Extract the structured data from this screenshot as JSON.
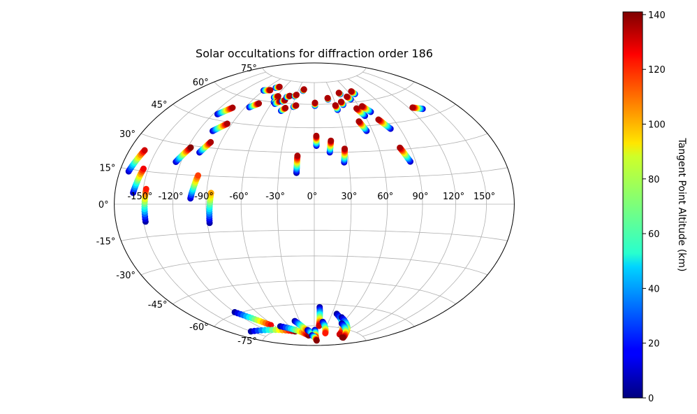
{
  "chart_data": {
    "type": "scatter",
    "projection": "aitoff/hammer-like world (longitude/latitude)",
    "title": "Solar occultations for diffraction order 186",
    "x_ticks": [
      "-150°",
      "-120°",
      "-90°",
      "-60°",
      "-30°",
      "0°",
      "30°",
      "60°",
      "90°",
      "120°",
      "150°"
    ],
    "y_ticks": [
      "75°",
      "60°",
      "45°",
      "30°",
      "15°",
      "0°",
      "-15°",
      "-30°",
      "-45°",
      "-60°",
      "-75°"
    ],
    "lon_values": [
      -150,
      -120,
      -90,
      -60,
      -30,
      0,
      30,
      60,
      90,
      120,
      150
    ],
    "lat_values": [
      75,
      60,
      45,
      30,
      15,
      0,
      -15,
      -30,
      -45,
      -60,
      -75
    ],
    "grid": true,
    "colorbar": {
      "label": "Tangent Point Altitude (km)",
      "colormap": "jet",
      "min": 0,
      "max": 141,
      "ticks": [
        "0",
        "20",
        "40",
        "60",
        "80",
        "100",
        "120",
        "140"
      ],
      "tick_values": [
        0,
        20,
        40,
        60,
        80,
        100,
        120,
        140
      ]
    },
    "tracks": [
      {
        "lon": [
          -170,
          -163
        ],
        "lat": [
          14,
          24
        ],
        "alt": [
          10,
          130
        ]
      },
      {
        "lon": [
          -160,
          -155
        ],
        "lat": [
          5,
          16
        ],
        "alt": [
          10,
          125
        ]
      },
      {
        "lon": [
          -148,
          -147
        ],
        "lat": [
          -8,
          7
        ],
        "alt": [
          5,
          120
        ]
      },
      {
        "lon": [
          -125,
          -117
        ],
        "lat": [
          21,
          29
        ],
        "alt": [
          10,
          140
        ]
      },
      {
        "lon": [
          -104,
          -100
        ],
        "lat": [
          3,
          15
        ],
        "alt": [
          10,
          115
        ]
      },
      {
        "lon": [
          -106,
          -100
        ],
        "lat": [
          27,
          33
        ],
        "alt": [
          10,
          135
        ]
      },
      {
        "lon": [
          -88,
          -86
        ],
        "lat": [
          -10,
          6
        ],
        "alt": [
          5,
          100
        ]
      },
      {
        "lon": [
          -105,
          -95
        ],
        "lat": [
          39,
          44
        ],
        "alt": [
          10,
          135
        ]
      },
      {
        "lon": [
          -115,
          -105
        ],
        "lat": [
          48,
          53
        ],
        "alt": [
          10,
          135
        ]
      },
      {
        "lon": [
          -85,
          -77
        ],
        "lat": [
          55,
          58
        ],
        "alt": [
          10,
          135
        ]
      },
      {
        "lon": [
          -90,
          -80
        ],
        "lat": [
          66,
          67
        ],
        "alt": [
          10,
          135
        ]
      },
      {
        "lon": [
          -75,
          -70
        ],
        "lat": [
          69,
          70
        ],
        "alt": [
          10,
          135
        ]
      },
      {
        "lon": [
          -63,
          -58
        ],
        "lat": [
          63,
          64
        ],
        "alt": [
          10,
          135
        ]
      },
      {
        "lon": [
          -58,
          -53
        ],
        "lat": [
          60,
          61
        ],
        "alt": [
          10,
          135
        ]
      },
      {
        "lon": [
          -55,
          -50
        ],
        "lat": [
          59,
          61
        ],
        "alt": [
          10,
          135
        ]
      },
      {
        "lon": [
          -47,
          -44
        ],
        "lat": [
          61,
          62
        ],
        "alt": [
          10,
          135
        ]
      },
      {
        "lon": [
          -44,
          -40
        ],
        "lat": [
          64,
          65
        ],
        "alt": [
          10,
          135
        ]
      },
      {
        "lon": [
          -42,
          -38
        ],
        "lat": [
          55,
          57
        ],
        "alt": [
          10,
          135
        ]
      },
      {
        "lon": [
          -32,
          -30
        ],
        "lat": [
          65,
          66
        ],
        "alt": [
          10,
          135
        ]
      },
      {
        "lon": [
          -28,
          -25
        ],
        "lat": [
          58,
          59
        ],
        "alt": [
          10,
          135
        ]
      },
      {
        "lon": [
          -21,
          -20
        ],
        "lat": [
          69,
          70
        ],
        "alt": [
          10,
          135
        ]
      },
      {
        "lon": [
          -15,
          -15
        ],
        "lat": [
          18,
          28
        ],
        "alt": [
          5,
          135
        ]
      },
      {
        "lon": [
          1,
          1
        ],
        "lat": [
          59,
          61
        ],
        "alt": [
          10,
          135
        ]
      },
      {
        "lon": [
          2,
          2
        ],
        "lat": [
          34,
          40
        ],
        "alt": [
          10,
          135
        ]
      },
      {
        "lon": [
          14,
          16
        ],
        "lat": [
          30,
          37
        ],
        "alt": [
          10,
          135
        ]
      },
      {
        "lon": [
          26,
          28
        ],
        "lat": [
          24,
          32
        ],
        "alt": [
          10,
          135
        ]
      },
      {
        "lon": [
          21,
          21
        ],
        "lat": [
          63,
          64
        ],
        "alt": [
          10,
          135
        ]
      },
      {
        "lon": [
          30,
          29
        ],
        "lat": [
          56,
          59
        ],
        "alt": [
          10,
          135
        ]
      },
      {
        "lon": [
          40,
          39
        ],
        "lat": [
          59,
          61
        ],
        "alt": [
          10,
          135
        ]
      },
      {
        "lon": [
          44,
          43
        ],
        "lat": [
          66,
          67
        ],
        "alt": [
          10,
          135
        ]
      },
      {
        "lon": [
          55,
          52
        ],
        "lat": [
          62,
          64
        ],
        "alt": [
          10,
          135
        ]
      },
      {
        "lon": [
          68,
          66
        ],
        "lat": [
          65,
          67
        ],
        "alt": [
          10,
          135
        ]
      },
      {
        "lon": [
          60,
          55
        ],
        "lat": [
          51,
          56
        ],
        "alt": [
          10,
          135
        ]
      },
      {
        "lon": [
          70,
          64
        ],
        "lat": [
          53,
          57
        ],
        "alt": [
          10,
          135
        ]
      },
      {
        "lon": [
          54,
          50
        ],
        "lat": [
          42,
          48
        ],
        "alt": [
          10,
          135
        ]
      },
      {
        "lon": [
          80,
          73
        ],
        "lat": [
          42,
          48
        ],
        "alt": [
          10,
          135
        ]
      },
      {
        "lon": [
          85,
          80
        ],
        "lat": [
          23,
          31
        ],
        "alt": [
          10,
          135
        ]
      },
      {
        "lon": [
          135,
          125
        ],
        "lat": [
          49,
          51
        ],
        "alt": [
          10,
          135
        ]
      },
      {
        "lon": [
          -120,
          -95
        ],
        "lat": [
          -59,
          -71
        ],
        "alt": [
          5,
          125
        ]
      },
      {
        "lon": [
          -150,
          -60
        ],
        "lat": [
          -70,
          -78
        ],
        "alt": [
          5,
          140
        ]
      },
      {
        "lon": [
          -80,
          -25
        ],
        "lat": [
          -73,
          -82
        ],
        "alt": [
          5,
          140
        ]
      },
      {
        "lon": [
          -40,
          -20
        ],
        "lat": [
          -71,
          -80
        ],
        "alt": [
          5,
          135
        ]
      },
      {
        "lon": [
          -20,
          10
        ],
        "lat": [
          -78,
          -84
        ],
        "alt": [
          5,
          140
        ]
      },
      {
        "lon": [
          2,
          8
        ],
        "lat": [
          -78,
          -84
        ],
        "alt": [
          5,
          130
        ]
      },
      {
        "lon": [
          8,
          12
        ],
        "lat": [
          -62,
          -75
        ],
        "alt": [
          5,
          130
        ]
      },
      {
        "lon": [
          18,
          40
        ],
        "lat": [
          -72,
          -80
        ],
        "alt": [
          5,
          120
        ]
      },
      {
        "lon": [
          38,
          90
        ],
        "lat": [
          -66,
          -79
        ],
        "alt": [
          5,
          130
        ]
      },
      {
        "lon": [
          50,
          115
        ],
        "lat": [
          -68,
          -80
        ],
        "alt": [
          5,
          140
        ]
      },
      {
        "lon": [
          60,
          120
        ],
        "lat": [
          -72,
          -80
        ],
        "alt": [
          5,
          140
        ]
      },
      {
        "lon": [
          -10,
          20
        ],
        "lat": [
          -82,
          -86
        ],
        "alt": [
          5,
          140
        ]
      }
    ]
  }
}
